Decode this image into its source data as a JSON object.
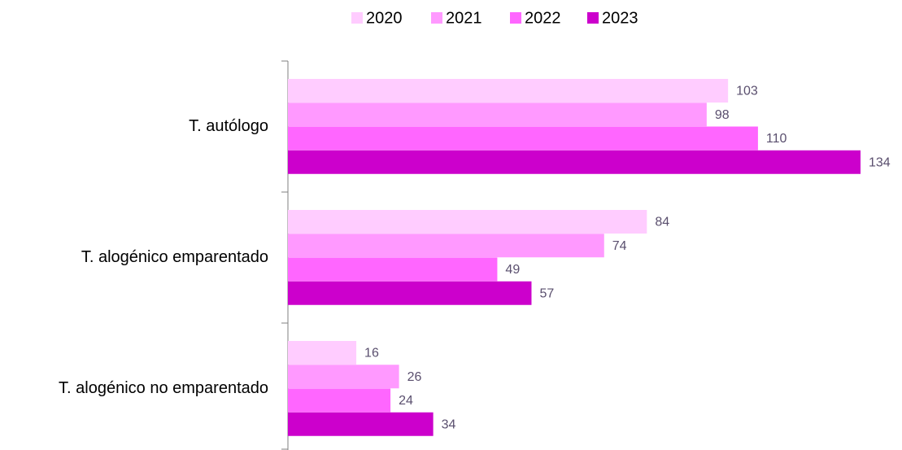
{
  "chart_data": {
    "type": "bar",
    "orientation": "horizontal",
    "categories": [
      "T. autólogo",
      "T. alogénico emparentado",
      "T. alogénico no emparentado"
    ],
    "series": [
      {
        "name": "2020",
        "color": "#ffccff",
        "values": [
          103,
          84,
          16
        ]
      },
      {
        "name": "2021",
        "color": "#ff99ff",
        "values": [
          98,
          74,
          26
        ]
      },
      {
        "name": "2022",
        "color": "#ff66ff",
        "values": [
          110,
          49,
          24
        ]
      },
      {
        "name": "2023",
        "color": "#cc00cc",
        "values": [
          134,
          57,
          34
        ]
      }
    ],
    "legend": "top"
  }
}
